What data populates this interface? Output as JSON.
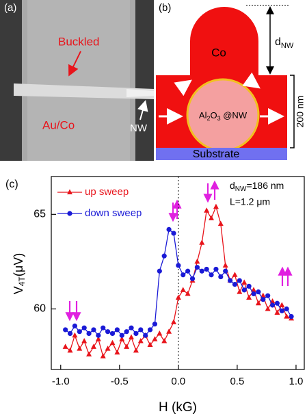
{
  "panel_a": {
    "label": "(a)",
    "buckled": "Buckled",
    "material": "Au/Co",
    "nw": "NW"
  },
  "panel_b": {
    "label": "(b)",
    "top": "Co",
    "d_symbol": "d",
    "d_sub": "NW",
    "height": "200 nm",
    "core": [
      "Al",
      "2",
      "O",
      "3",
      " @NW"
    ],
    "substrate": "Substrate"
  },
  "chart_data": {
    "type": "line",
    "panel_label": "(c)",
    "x_label": "H (kG)",
    "y_label": [
      "V",
      "4T",
      "(μV)"
    ],
    "annotations": [
      [
        "d",
        "NW",
        "=186 nm"
      ],
      [
        "L=1.2 μm"
      ]
    ],
    "x": [
      -0.96,
      -0.92,
      -0.88,
      -0.84,
      -0.8,
      -0.76,
      -0.72,
      -0.68,
      -0.64,
      -0.6,
      -0.56,
      -0.52,
      -0.48,
      -0.44,
      -0.4,
      -0.36,
      -0.32,
      -0.28,
      -0.24,
      -0.2,
      -0.16,
      -0.12,
      -0.08,
      -0.04,
      0,
      0.04,
      0.08,
      0.12,
      0.16,
      0.2,
      0.24,
      0.28,
      0.32,
      0.36,
      0.4,
      0.44,
      0.48,
      0.52,
      0.56,
      0.6,
      0.64,
      0.68,
      0.72,
      0.76,
      0.8,
      0.84,
      0.88,
      0.92,
      0.96
    ],
    "series": [
      {
        "name": "up sweep",
        "color": "#e8141b",
        "marker": "triangle",
        "values": [
          58.0,
          57.8,
          58.6,
          57.9,
          58.3,
          57.6,
          58.0,
          58.4,
          57.5,
          57.9,
          58.2,
          57.7,
          58.4,
          58.0,
          58.5,
          57.8,
          58.3,
          58.6,
          58.1,
          58.4,
          58.7,
          58.3,
          58.8,
          59.3,
          60.6,
          61.0,
          60.8,
          61.5,
          62.5,
          63.5,
          65.2,
          64.8,
          65.4,
          64.5,
          62.3,
          61.5,
          61.8,
          60.9,
          61.4,
          60.6,
          61.0,
          60.3,
          60.7,
          60.0,
          60.4,
          59.8,
          60.2,
          59.6,
          59.5
        ]
      },
      {
        "name": "down sweep",
        "color": "#1a1ad6",
        "marker": "circle",
        "values": [
          58.9,
          58.7,
          59.1,
          58.8,
          59.0,
          58.7,
          58.9,
          58.6,
          59.0,
          58.8,
          58.7,
          58.9,
          58.6,
          58.8,
          59.0,
          58.7,
          58.9,
          58.6,
          58.9,
          59.2,
          62.0,
          62.8,
          64.2,
          64.0,
          62.3,
          61.8,
          62.0,
          61.6,
          62.2,
          62.0,
          62.1,
          61.8,
          62.1,
          61.7,
          62.0,
          61.5,
          61.3,
          61.5,
          61.0,
          61.2,
          60.8,
          60.9,
          60.5,
          60.7,
          60.2,
          60.3,
          59.9,
          60.0,
          59.6
        ]
      }
    ],
    "xlim": [
      -1.08,
      1.07
    ],
    "ylim": [
      56.8,
      67
    ],
    "xticks": [
      {
        "value": -1,
        "label": "-1.0"
      },
      {
        "value": -0.5,
        "label": "-0.5"
      },
      {
        "value": 0,
        "label": "0.0"
      },
      {
        "value": 0.5,
        "label": "0.5"
      },
      {
        "value": 1,
        "label": "1.0"
      }
    ],
    "yticks": [
      60,
      65
    ],
    "vline": 0
  }
}
